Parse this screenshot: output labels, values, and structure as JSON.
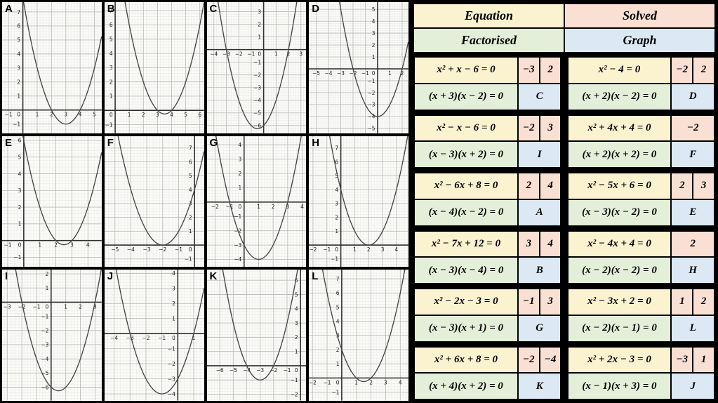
{
  "colors": {
    "page_bg": "#000000",
    "equation_bg": "#fbf2d0",
    "solved_bg": "#fae0d3",
    "factorised_bg": "#e4efda",
    "graph_bg": "#dce9f5",
    "plot_bg": "#fbfbf8",
    "grid_minor": "#e9e9e9",
    "grid_major": "#bbbbbb",
    "axis": "#2f2f2f",
    "curve": "#444444"
  },
  "table": {
    "headers": {
      "equation": "Equation",
      "solved": "Solved",
      "factorised": "Factorised",
      "graph": "Graph"
    },
    "rows": [
      {
        "equation": "x² + x − 6 = 0",
        "solutions": [
          "−3",
          "2"
        ],
        "factorised": "(x + 3)(x − 2) = 0",
        "graph": "C"
      },
      {
        "equation": "x² − 4 = 0",
        "solutions": [
          "−2",
          "2"
        ],
        "factorised": "(x + 2)(x − 2) = 0",
        "graph": "D"
      },
      {
        "equation": "x² − x − 6 = 0",
        "solutions": [
          "−2",
          "3"
        ],
        "factorised": "(x − 3)(x + 2) = 0",
        "graph": "I"
      },
      {
        "equation": "x² + 4x + 4 = 0",
        "solutions": [
          "−2"
        ],
        "factorised": "(x + 2)(x + 2) = 0",
        "graph": "F"
      },
      {
        "equation": "x² − 6x + 8 = 0",
        "solutions": [
          "2",
          "4"
        ],
        "factorised": "(x − 4)(x − 2) = 0",
        "graph": "A"
      },
      {
        "equation": "x² − 5x + 6 = 0",
        "solutions": [
          "2",
          "3"
        ],
        "factorised": "(x − 3)(x − 2) = 0",
        "graph": "E"
      },
      {
        "equation": "x² − 7x + 12 = 0",
        "solutions": [
          "3",
          "4"
        ],
        "factorised": "(x − 3)(x − 4) = 0",
        "graph": "B"
      },
      {
        "equation": "x² − 4x + 4 = 0",
        "solutions": [
          "2"
        ],
        "factorised": "(x − 2)(x − 2) = 0",
        "graph": "H"
      },
      {
        "equation": "x² − 2x − 3 = 0",
        "solutions": [
          "−1",
          "3"
        ],
        "factorised": "(x − 3)(x + 1) = 0",
        "graph": "G"
      },
      {
        "equation": "x² − 3x + 2 = 0",
        "solutions": [
          "1",
          "2"
        ],
        "factorised": "(x − 2)(x − 1) = 0",
        "graph": "L"
      },
      {
        "equation": "x² + 6x + 8 = 0",
        "solutions": [
          "−2",
          "−4"
        ],
        "factorised": "(x + 4)(x + 2) = 0",
        "graph": "K"
      },
      {
        "equation": "x² + 2x − 3 = 0",
        "solutions": [
          "−3",
          "1"
        ],
        "factorised": "(x − 1)(x + 3) = 0",
        "graph": "J"
      }
    ]
  },
  "chart_data": [
    {
      "id": "A",
      "type": "line",
      "function": "y = x² − 6x + 8",
      "coeffs": {
        "a": 1,
        "b": -6,
        "c": 8
      },
      "roots": [
        2,
        4
      ],
      "vertex": [
        3,
        -1
      ],
      "xlim": [
        -1.45,
        5.5
      ],
      "ylim": [
        -1.65,
        7.7
      ],
      "xticks": [
        -1,
        0,
        1,
        2,
        3,
        4,
        5
      ],
      "yticks": [
        -1,
        1,
        2,
        3,
        4,
        5,
        6,
        7
      ]
    },
    {
      "id": "B",
      "type": "line",
      "function": "y = x² − 7x + 12",
      "coeffs": {
        "a": 1,
        "b": -7,
        "c": 12
      },
      "roots": [
        3,
        4
      ],
      "vertex": [
        3.5,
        -0.25
      ],
      "xlim": [
        -0.75,
        6.3
      ],
      "ylim": [
        -1.6,
        7.6
      ],
      "xticks": [
        0,
        1,
        2,
        3,
        4,
        5,
        6
      ],
      "yticks": [
        -1,
        1,
        2,
        3,
        4,
        5,
        6,
        7
      ]
    },
    {
      "id": "C",
      "type": "line",
      "function": "y = x² + x − 6",
      "coeffs": {
        "a": 1,
        "b": 1,
        "c": -6
      },
      "roots": [
        -3,
        2
      ],
      "vertex": [
        -0.5,
        -6.25
      ],
      "xlim": [
        -4.55,
        3.45
      ],
      "ylim": [
        -6.6,
        3.75
      ],
      "xticks": [
        -4,
        -3,
        -2,
        -1,
        0,
        1,
        2,
        3
      ],
      "yticks": [
        -6,
        -5,
        -4,
        -3,
        -2,
        -1,
        1,
        2,
        3
      ]
    },
    {
      "id": "D",
      "type": "line",
      "function": "y = x² − 4",
      "coeffs": {
        "a": 1,
        "b": 0,
        "c": -4
      },
      "roots": [
        -2,
        2
      ],
      "vertex": [
        0,
        -4
      ],
      "xlim": [
        -5.6,
        2.5
      ],
      "ylim": [
        -5.4,
        5.6
      ],
      "xticks": [
        -5,
        -4,
        -3,
        -2,
        -1,
        0,
        1,
        2
      ],
      "yticks": [
        -5,
        -4,
        -3,
        -2,
        -1,
        1,
        2,
        3,
        4,
        5
      ]
    },
    {
      "id": "E",
      "type": "line",
      "function": "y = x² − 5x + 6",
      "coeffs": {
        "a": 1,
        "b": -5,
        "c": 6
      },
      "roots": [
        2,
        3
      ],
      "vertex": [
        2.5,
        -0.25
      ],
      "xlim": [
        -1.35,
        4.85
      ],
      "ylim": [
        -1.6,
        6.25
      ],
      "xticks": [
        -1,
        0,
        1,
        2,
        3,
        4
      ],
      "yticks": [
        -1,
        1,
        2,
        3,
        4,
        5,
        6
      ]
    },
    {
      "id": "F",
      "type": "line",
      "function": "y = x² + 4x + 4",
      "coeffs": {
        "a": 1,
        "b": 4,
        "c": 4
      },
      "roots": [
        -2
      ],
      "vertex": [
        -2,
        0
      ],
      "xlim": [
        -5.65,
        0.6
      ],
      "ylim": [
        -1.6,
        7.85
      ],
      "xticks": [
        -5,
        -4,
        -3,
        -2,
        -1,
        0
      ],
      "yticks": [
        -1,
        1,
        2,
        3,
        4,
        5,
        6,
        7
      ]
    },
    {
      "id": "G",
      "type": "line",
      "function": "y = x² − 2x − 3",
      "coeffs": {
        "a": 1,
        "b": -2,
        "c": -3
      },
      "roots": [
        -1,
        3
      ],
      "vertex": [
        1,
        -4
      ],
      "xlim": [
        -2.55,
        4.3
      ],
      "ylim": [
        -4.55,
        4.6
      ],
      "xticks": [
        -2,
        -1,
        0,
        1,
        2,
        3,
        4
      ],
      "yticks": [
        -4,
        -3,
        -2,
        -1,
        1,
        2,
        3,
        4
      ]
    },
    {
      "id": "H",
      "type": "line",
      "function": "y = x² − 4x + 4",
      "coeffs": {
        "a": 1,
        "b": -4,
        "c": 4
      },
      "roots": [
        2
      ],
      "vertex": [
        2,
        0
      ],
      "xlim": [
        -2.3,
        4.85
      ],
      "ylim": [
        -1.6,
        7.85
      ],
      "xticks": [
        -2,
        -1,
        0,
        1,
        2,
        3,
        4
      ],
      "yticks": [
        -1,
        1,
        2,
        3,
        4,
        5,
        6,
        7
      ]
    },
    {
      "id": "I",
      "type": "line",
      "function": "y = x² − x − 6",
      "coeffs": {
        "a": 1,
        "b": -1,
        "c": -6
      },
      "roots": [
        -2,
        3
      ],
      "vertex": [
        0.5,
        -6.25
      ],
      "xlim": [
        -3.35,
        3.45
      ],
      "ylim": [
        -6.95,
        2.3
      ],
      "xticks": [
        -3,
        -2,
        -1,
        0,
        1,
        2,
        3
      ],
      "yticks": [
        -6,
        -5,
        -4,
        -3,
        -2,
        -1,
        1,
        2
      ]
    },
    {
      "id": "J",
      "type": "line",
      "function": "y = x² + 2x − 3",
      "coeffs": {
        "a": 1,
        "b": 2,
        "c": -3
      },
      "roots": [
        -3,
        1
      ],
      "vertex": [
        -1,
        -4
      ],
      "xlim": [
        -4.6,
        1.65
      ],
      "ylim": [
        -4.45,
        4.25
      ],
      "xticks": [
        -4,
        -3,
        -2,
        -1,
        0,
        1
      ],
      "yticks": [
        -4,
        -3,
        -2,
        -1,
        1,
        2,
        3,
        4
      ]
    },
    {
      "id": "K",
      "type": "line",
      "function": "y = x² + 6x + 8",
      "coeffs": {
        "a": 1,
        "b": 6,
        "c": 8
      },
      "roots": [
        -4,
        -2
      ],
      "vertex": [
        -3,
        -1
      ],
      "xlim": [
        -6.95,
        0.45
      ],
      "ylim": [
        -2.45,
        6.75
      ],
      "xticks": [
        -6,
        -5,
        -4,
        -3,
        -2,
        -1,
        0
      ],
      "yticks": [
        -2,
        -1,
        1,
        2,
        3,
        4,
        5,
        6
      ]
    },
    {
      "id": "L",
      "type": "line",
      "function": "y = x² − 3x + 2",
      "coeffs": {
        "a": 1,
        "b": -3,
        "c": 2
      },
      "roots": [
        1,
        2
      ],
      "vertex": [
        1.5,
        -0.25
      ],
      "xlim": [
        -2.25,
        4.55
      ],
      "ylim": [
        -1.6,
        7.65
      ],
      "xticks": [
        -2,
        -1,
        0,
        1,
        2,
        3,
        4
      ],
      "yticks": [
        -1,
        1,
        2,
        3,
        4,
        5,
        6,
        7
      ]
    }
  ]
}
